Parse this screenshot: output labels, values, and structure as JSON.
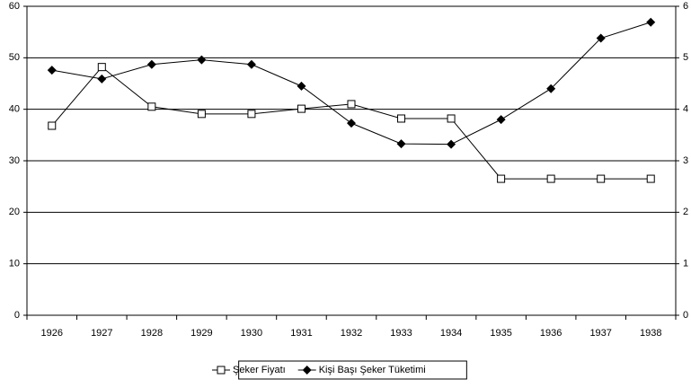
{
  "chart_data": {
    "type": "line",
    "categories": [
      "1926",
      "1927",
      "1928",
      "1929",
      "1930",
      "1931",
      "1932",
      "1933",
      "1934",
      "1935",
      "1936",
      "1937",
      "1938"
    ],
    "series": [
      {
        "name": "Şeker Fiyatı",
        "color": "#000000",
        "marker": "square",
        "axis": "y",
        "values": [
          36.8,
          48.2,
          40.5,
          39.1,
          39.1,
          40.1,
          41.0,
          38.2,
          38.2,
          26.5,
          26.5,
          26.5,
          26.5
        ]
      },
      {
        "name": "Kişi Başı Şeker Tüketimi",
        "color": "#000000",
        "marker": "diamond",
        "axis": "y2",
        "values": [
          4.76,
          4.59,
          4.87,
          4.96,
          4.87,
          4.45,
          3.73,
          3.33,
          3.32,
          3.8,
          4.4,
          5.38,
          5.69
        ]
      }
    ],
    "ylim": [
      0,
      60
    ],
    "yticks": [
      0,
      10,
      20,
      30,
      40,
      50,
      60
    ],
    "y2lim": [
      0,
      6
    ],
    "y2ticks": [
      0,
      1,
      2,
      3,
      4,
      5,
      6
    ],
    "grid": true,
    "legend": "bottom"
  }
}
